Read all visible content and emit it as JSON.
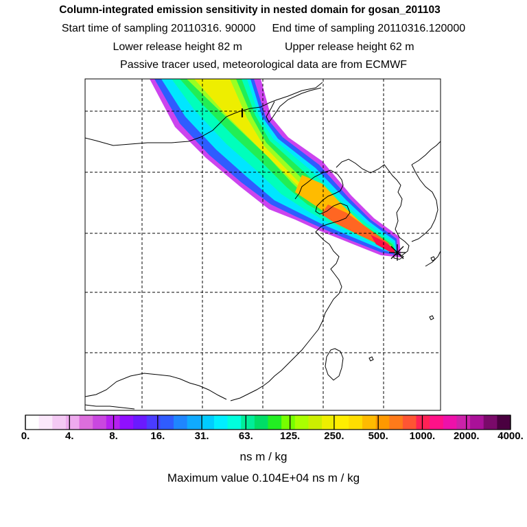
{
  "header": {
    "title": "Column-integrated emission sensitivity in nested domain for gosan_201103",
    "start_label": "Start time of sampling 20110316. 90000",
    "end_label": "End time of sampling 20110316.120000",
    "lower_label": "Lower release height   82 m",
    "upper_label": "Upper release height   62 m",
    "tracer_line": "Passive tracer used, meteorological data are from ECMWF"
  },
  "colorbar": {
    "ticks": [
      "0.",
      "4.",
      "8.",
      "16.",
      "31.",
      "63.",
      "125.",
      "250.",
      "500.",
      "1000.",
      "2000.",
      "4000."
    ],
    "colors": [
      "#ffffff",
      "#fbe8fb",
      "#f4c9f4",
      "#eeaaee",
      "#dc6edc",
      "#c947e0",
      "#b620f0",
      "#8f10ff",
      "#6a1aff",
      "#4a3cff",
      "#2f5cff",
      "#1f86ff",
      "#10aaff",
      "#00ccff",
      "#00eeff",
      "#00ffdd",
      "#00ee99",
      "#00dd66",
      "#22ee22",
      "#77ff00",
      "#aaff00",
      "#ccee00",
      "#eeee00",
      "#ffee00",
      "#ffdd00",
      "#ffbb00",
      "#ff9900",
      "#ff7a1a",
      "#ff5533",
      "#ff2255",
      "#ff1188",
      "#ee11aa",
      "#cc22aa",
      "#aa1199",
      "#7a0a6a",
      "#4a0040"
    ],
    "units": "ns m / kg"
  },
  "max_value_text": "Maximum value  0.104E+04 ns m / kg",
  "map": {
    "receptor": "gosan",
    "receptor_marker": "star-cross",
    "plume_colors": [
      "#cc44ee",
      "#2f5cff",
      "#00e6ff",
      "#00ffbb",
      "#22ee55",
      "#99ff22",
      "#eeee00",
      "#ffbb00",
      "#ff6622",
      "#ff1144"
    ]
  }
}
